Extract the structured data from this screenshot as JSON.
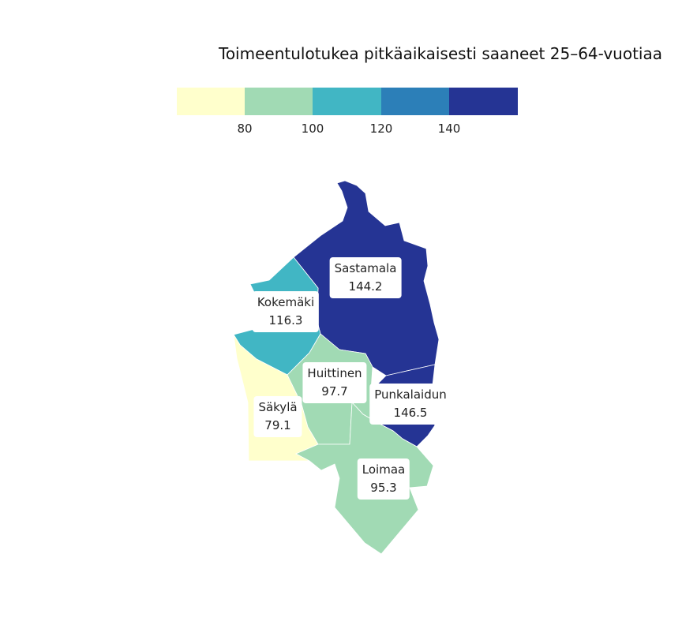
{
  "title": "Toimeentulotukea pitkäaikaisesti saaneet 25–64-vuotiaa",
  "legend": {
    "bins": [
      {
        "color": "#ffffcc"
      },
      {
        "color": "#a1dab4"
      },
      {
        "color": "#41b6c4"
      },
      {
        "color": "#2c7fb8"
      },
      {
        "color": "#253494"
      }
    ],
    "ticks": [
      "80",
      "100",
      "120",
      "140"
    ]
  },
  "regions": [
    {
      "id": "sastamala",
      "name": "Sastamala",
      "value": "144.2",
      "color": "#253494"
    },
    {
      "id": "kokemaki",
      "name": "Kokemäki",
      "value": "116.3",
      "color": "#41b6c4"
    },
    {
      "id": "huittinen",
      "name": "Huittinen",
      "value": "97.7",
      "color": "#a1dab4"
    },
    {
      "id": "punkalaidun",
      "name": "Punkalaidun",
      "value": "146.5",
      "color": "#253494"
    },
    {
      "id": "sakyla",
      "name": "Säkylä",
      "value": "79.1",
      "color": "#ffffcc"
    },
    {
      "id": "loimaa",
      "name": "Loimaa",
      "value": "95.3",
      "color": "#a1dab4"
    }
  ]
}
